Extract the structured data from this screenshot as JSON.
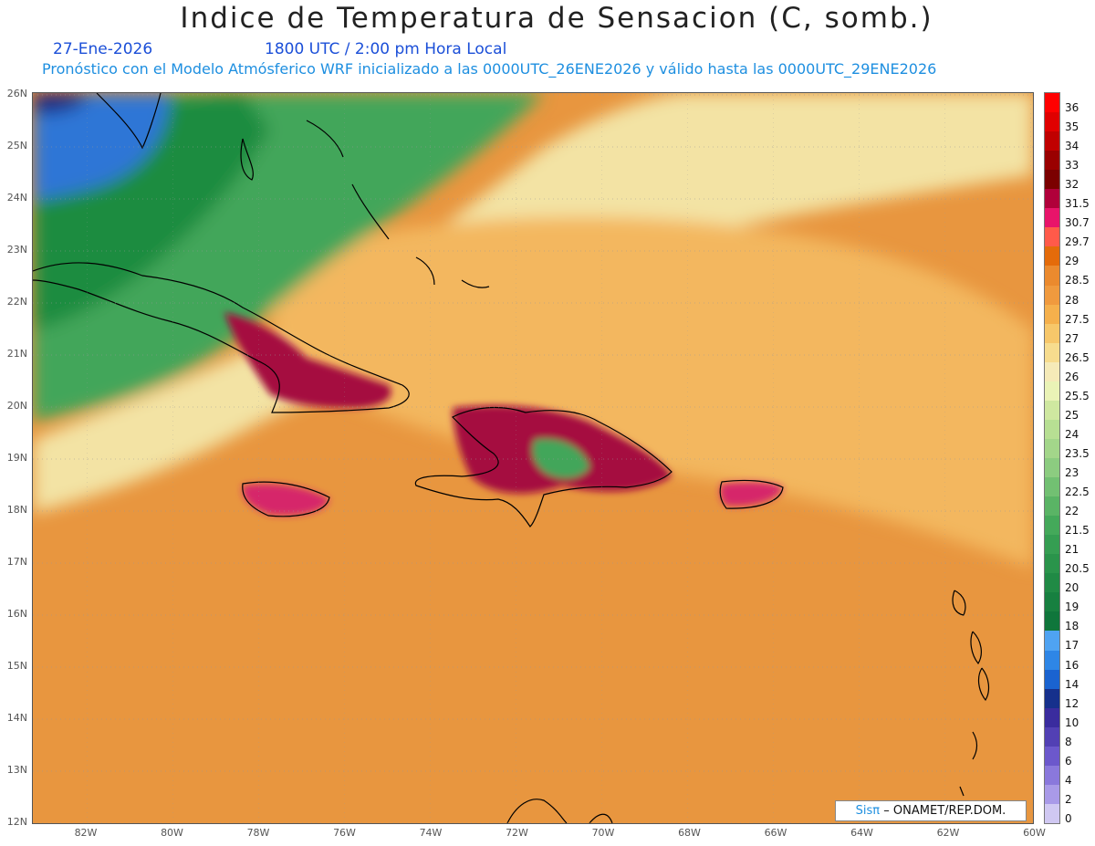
{
  "header": {
    "title": "Indice de Temperatura de Sensacion (C, somb.)",
    "date": "27-Ene-2026",
    "time": "1800 UTC / 2:00 pm Hora Local",
    "model_info": "Pronóstico con el Modelo Atmósferico WRF inicializado a las 0000UTC_26ENE2026 y válido hasta las  0000UTC_29ENE2026"
  },
  "map": {
    "lon_range": [
      -83.2,
      -59.8
    ],
    "lat_range": [
      11.85,
      26.1
    ],
    "lat_labels": [
      "26N",
      "25N",
      "24N",
      "23N",
      "22N",
      "21N",
      "20N",
      "19N",
      "18N",
      "17N",
      "16N",
      "15N",
      "14N",
      "13N",
      "12N"
    ],
    "lon_labels": [
      "82W",
      "80W",
      "78W",
      "76W",
      "74W",
      "72W",
      "70W",
      "68W",
      "66W",
      "64W",
      "62W",
      "60W"
    ],
    "colors": {
      "background": "#e8963f",
      "warm_low": "#f3b75e",
      "cool_green": "#43a65a",
      "deep_green": "#1f8c3f",
      "blue_cold": "#2e76d6",
      "navy": "#1a1f7d",
      "hot_red": "#a50d3f",
      "hot_pink": "#d6256a",
      "pale": "#f3e3a4"
    }
  },
  "colorbar": {
    "labels": [
      "36",
      "35",
      "34",
      "33",
      "32",
      "31.5",
      "30.7",
      "29.7",
      "29",
      "28.5",
      "28",
      "27.5",
      "27",
      "26.5",
      "26",
      "25.5",
      "25",
      "24",
      "23.5",
      "23",
      "22.5",
      "22",
      "21.5",
      "21",
      "20.5",
      "20",
      "19",
      "18",
      "17",
      "16",
      "14",
      "12",
      "10",
      "8",
      "6",
      "4",
      "2",
      "0"
    ],
    "colors": [
      "#ff0000",
      "#e00000",
      "#c00000",
      "#9a0000",
      "#7b0000",
      "#b0003a",
      "#e8146a",
      "#ff5a4a",
      "#e46b0a",
      "#eb8a2e",
      "#f09a3e",
      "#f5b04c",
      "#f7c76a",
      "#f7dc8e",
      "#f5eab8",
      "#eaf3b6",
      "#cfe8a0",
      "#b7df93",
      "#a3d68a",
      "#8ccc80",
      "#72c072",
      "#5ab465",
      "#44a95a",
      "#359e52",
      "#2a944b",
      "#208a45",
      "#178040",
      "#0f763b",
      "#4fa3f2",
      "#2e86e6",
      "#1a63d0",
      "#16308c",
      "#3a2c9e",
      "#5240b4",
      "#6c58cc",
      "#8a78dc",
      "#a99ae8",
      "#d0c8f2"
    ]
  },
  "credit": {
    "brand": "Sisπ",
    "org": "– ONAMET/REP.DOM."
  }
}
